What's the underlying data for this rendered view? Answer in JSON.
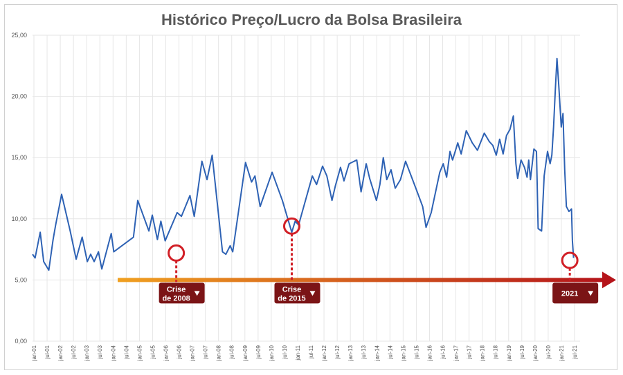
{
  "chart_data": {
    "type": "line",
    "title": "Histórico Preço/Lucro da Bolsa Brasileira",
    "xlabel": "",
    "ylabel": "",
    "ylim": [
      0,
      25
    ],
    "yticks": [
      "0,00",
      "5,00",
      "10,00",
      "15,00",
      "20,00",
      "25,00"
    ],
    "xticks": [
      "jan-01",
      "jul-01",
      "jan-02",
      "jul-02",
      "jan-03",
      "jul-03",
      "jan-04",
      "jul-04",
      "jan-05",
      "jul-05",
      "jan-06",
      "jul-06",
      "jan-07",
      "jul-07",
      "jan-08",
      "jul-08",
      "jan-09",
      "jul-09",
      "jan-10",
      "jul-10",
      "jan-11",
      "jul-11",
      "jan-12",
      "jul-12",
      "jan-13",
      "jul-13",
      "jan-14",
      "jul-14",
      "jan-15",
      "jul-15",
      "jan-16",
      "jul-16",
      "jan-17",
      "jul-17",
      "jan-18",
      "jul-18",
      "jan-19",
      "jul-19",
      "jan-20",
      "jul-20",
      "jan-21",
      "jul-21"
    ],
    "grid": true,
    "series": [
      {
        "color": "#2e62b4",
        "points": [
          [
            2001.0,
            7.1
          ],
          [
            2001.15,
            6.8
          ],
          [
            2001.45,
            8.9
          ],
          [
            2001.65,
            6.5
          ],
          [
            2001.95,
            5.8
          ],
          [
            2002.2,
            8.3
          ],
          [
            2002.35,
            9.5
          ],
          [
            2002.7,
            12.0
          ],
          [
            2003.2,
            9.0
          ],
          [
            2003.55,
            6.7
          ],
          [
            2003.9,
            8.5
          ],
          [
            2004.2,
            6.5
          ],
          [
            2004.4,
            7.1
          ],
          [
            2004.6,
            6.5
          ],
          [
            2004.85,
            7.3
          ],
          [
            2005.05,
            5.9
          ],
          [
            2005.6,
            8.8
          ],
          [
            2005.75,
            7.3
          ],
          [
            2006.9,
            8.5
          ],
          [
            2007.15,
            11.5
          ],
          [
            2007.8,
            9.0
          ],
          [
            2008.0,
            10.3
          ],
          [
            2008.3,
            8.3
          ],
          [
            2008.5,
            9.8
          ],
          [
            2008.75,
            8.2
          ],
          [
            2009.45,
            10.5
          ],
          [
            2009.7,
            10.2
          ],
          [
            2010.2,
            11.9
          ],
          [
            2010.45,
            10.2
          ],
          [
            2010.9,
            14.7
          ],
          [
            2011.2,
            13.2
          ],
          [
            2011.5,
            15.2
          ],
          [
            2012.1,
            7.3
          ],
          [
            2012.3,
            7.1
          ],
          [
            2012.55,
            7.8
          ],
          [
            2012.7,
            7.3
          ],
          [
            2013.45,
            14.6
          ],
          [
            2013.8,
            13.0
          ],
          [
            2014.0,
            13.5
          ],
          [
            2014.3,
            11.0
          ],
          [
            2015.0,
            13.8
          ],
          [
            2015.6,
            11.5
          ],
          [
            2016.15,
            8.9
          ],
          [
            2016.35,
            9.8
          ],
          [
            2016.55,
            9.5
          ],
          [
            2016.85,
            11.0
          ],
          [
            2017.35,
            13.5
          ],
          [
            2017.6,
            12.8
          ],
          [
            2017.95,
            14.3
          ],
          [
            2018.2,
            13.5
          ],
          [
            2018.5,
            11.5
          ],
          [
            2018.7,
            12.7
          ],
          [
            2019.0,
            14.2
          ],
          [
            2019.2,
            13.1
          ],
          [
            2019.5,
            14.5
          ],
          [
            2019.95,
            14.8
          ],
          [
            2020.2,
            12.2
          ],
          [
            2020.5,
            14.5
          ],
          [
            2020.7,
            13.3
          ],
          [
            2021.1,
            11.5
          ],
          [
            2021.3,
            12.8
          ],
          [
            2021.5,
            15.0
          ],
          [
            2021.7,
            13.2
          ],
          [
            2021.95,
            14.0
          ],
          [
            2022.2,
            12.5
          ],
          [
            2022.5,
            13.2
          ],
          [
            2022.8,
            14.7
          ],
          [
            2023.4,
            12.5
          ],
          [
            2023.8,
            11.0
          ],
          [
            2024.0,
            9.3
          ],
          [
            2024.3,
            10.5
          ],
          [
            2024.6,
            12.5
          ],
          [
            2024.8,
            13.8
          ],
          [
            2025.0,
            14.5
          ],
          [
            2025.2,
            13.4
          ],
          [
            2025.4,
            15.5
          ],
          [
            2025.55,
            14.8
          ],
          [
            2025.85,
            16.2
          ],
          [
            2026.05,
            15.3
          ],
          [
            2026.35,
            17.2
          ],
          [
            2026.7,
            16.2
          ],
          [
            2027.0,
            15.6
          ],
          [
            2027.4,
            17.0
          ],
          [
            2027.7,
            16.3
          ],
          [
            2027.9,
            16.0
          ],
          [
            2028.1,
            15.2
          ],
          [
            2028.3,
            16.5
          ],
          [
            2028.5,
            15.3
          ],
          [
            2028.7,
            16.8
          ],
          [
            2028.9,
            17.3
          ],
          [
            2029.1,
            18.4
          ],
          [
            2029.25,
            14.5
          ],
          [
            2029.35,
            13.3
          ],
          [
            2029.55,
            14.8
          ],
          [
            2029.75,
            14.2
          ],
          [
            2029.9,
            13.4
          ],
          [
            2030.0,
            14.8
          ],
          [
            2030.1,
            13.2
          ],
          [
            2030.3,
            15.7
          ],
          [
            2030.45,
            15.5
          ],
          [
            2030.55,
            9.2
          ],
          [
            2030.75,
            9.0
          ],
          [
            2030.9,
            13.5
          ],
          [
            2031.1,
            15.5
          ],
          [
            2031.25,
            14.5
          ],
          [
            2031.35,
            15.2
          ],
          [
            2031.45,
            17.5
          ],
          [
            2031.55,
            20.5
          ],
          [
            2031.65,
            23.1
          ],
          [
            2031.75,
            21.0
          ],
          [
            2031.9,
            17.5
          ],
          [
            2032.0,
            18.6
          ],
          [
            2032.1,
            14.0
          ],
          [
            2032.2,
            11.0
          ],
          [
            2032.35,
            10.6
          ],
          [
            2032.5,
            10.8
          ],
          [
            2032.55,
            8.2
          ],
          [
            2032.62,
            6.8
          ]
        ]
      }
    ],
    "annotations": [
      {
        "label_line1": "Crise",
        "label_line2": "de 2008",
        "x": 2009.4,
        "y": 7.2
      },
      {
        "label_line1": "Crise",
        "label_line2": "de 2015",
        "x": 2016.15,
        "y": 9.4
      },
      {
        "label_line1": "2021",
        "label_line2": "",
        "x": 2032.4,
        "y": 6.6
      }
    ],
    "colors": {
      "line": "#2e62b4",
      "circle": "#d11f26",
      "badge": "#7b1416",
      "arrow_start": "#f0a020",
      "arrow_end": "#b5141a",
      "grid": "#e6e6e6"
    }
  }
}
